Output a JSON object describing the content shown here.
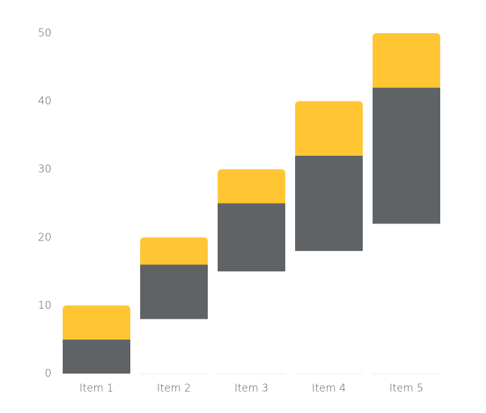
{
  "chart_data": {
    "type": "floating-bar",
    "categories": [
      "Item 1",
      "Item 2",
      "Item 3",
      "Item 4",
      "Item 5"
    ],
    "bases": [
      0,
      8,
      15,
      18,
      22
    ],
    "series": [
      {
        "color": "#5f6366",
        "values": [
          5,
          8,
          10,
          14,
          20
        ]
      },
      {
        "color": "#ffc533",
        "values": [
          5,
          4,
          5,
          8,
          8
        ]
      }
    ],
    "ylim": [
      0,
      50
    ],
    "yticks": [
      0,
      10,
      20,
      30,
      40,
      50
    ],
    "grid": false
  }
}
